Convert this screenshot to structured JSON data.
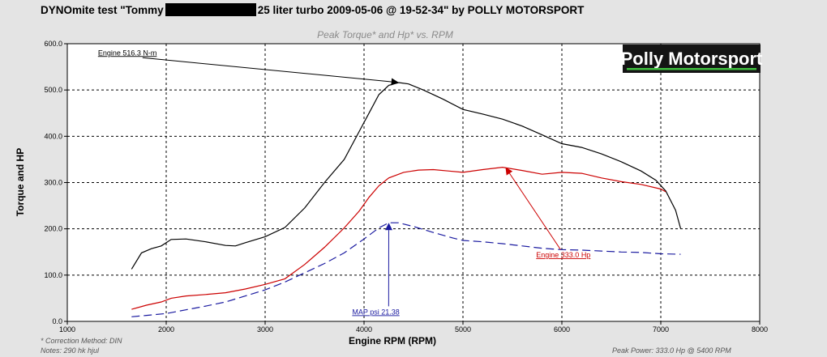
{
  "header": {
    "title_prefix": "DYNOmite test \"Tommy",
    "title_suffix": "25 liter turbo 2009-05-06 @ 19-52-34\" by POLLY MOTORSPORT"
  },
  "logo": {
    "text": "Polly Motorsport",
    "accent": "#3fbf3f"
  },
  "footer": {
    "correction": "* Correction Method: DIN",
    "notes": "Notes: 290 hk hjul",
    "peak_power": "Peak Power: 333.0 Hp @ 5400 RPM"
  },
  "chart_data": {
    "type": "line",
    "title": "Peak Torque* and Hp* vs. RPM",
    "xlabel": "Engine RPM (RPM)",
    "ylabel": "Torque and HP",
    "xlim": [
      1000,
      8000
    ],
    "ylim": [
      0,
      600
    ],
    "xticks": [
      "1000",
      "2000",
      "3000",
      "4000",
      "5000",
      "6000",
      "7000",
      "8000"
    ],
    "yticks": [
      "0.0",
      "100.0",
      "200.0",
      "300.0",
      "400.0",
      "500.0",
      "600.0"
    ],
    "grid": true,
    "series": [
      {
        "name": "Engine N-m",
        "color": "#000000",
        "style": "solid",
        "x": [
          1650,
          1750,
          1850,
          1950,
          2050,
          2200,
          2400,
          2600,
          2700,
          2800,
          3000,
          3200,
          3400,
          3600,
          3800,
          3950,
          4050,
          4150,
          4250,
          4350,
          4450,
          4600,
          4800,
          5000,
          5200,
          5400,
          5600,
          5800,
          6000,
          6200,
          6400,
          6600,
          6800,
          6950,
          7050,
          7150,
          7200
        ],
        "y": [
          113,
          148,
          157,
          163,
          177,
          178,
          172,
          164,
          163,
          170,
          183,
          203,
          245,
          300,
          350,
          410,
          450,
          490,
          510,
          516,
          513,
          500,
          480,
          458,
          448,
          437,
          422,
          403,
          384,
          376,
          362,
          345,
          325,
          305,
          282,
          240,
          201
        ]
      },
      {
        "name": "Engine Hp",
        "color": "#cc0000",
        "style": "solid",
        "x": [
          1650,
          1800,
          1950,
          2050,
          2200,
          2400,
          2600,
          2800,
          3000,
          3200,
          3400,
          3600,
          3800,
          3950,
          4050,
          4150,
          4250,
          4400,
          4550,
          4700,
          4850,
          5000,
          5200,
          5400,
          5600,
          5800,
          6000,
          6200,
          6400,
          6600,
          6800,
          7000,
          7050
        ],
        "y": [
          26,
          35,
          42,
          50,
          55,
          58,
          62,
          70,
          80,
          92,
          123,
          160,
          202,
          238,
          268,
          293,
          310,
          322,
          327,
          328,
          325,
          322,
          328,
          333,
          326,
          318,
          322,
          320,
          310,
          302,
          296,
          286,
          280
        ]
      },
      {
        "name": "MAP psi",
        "color": "#1a1aa0",
        "style": "dashed",
        "x": [
          1650,
          1800,
          2000,
          2200,
          2400,
          2600,
          2800,
          3000,
          3200,
          3400,
          3600,
          3800,
          4000,
          4150,
          4250,
          4350,
          4500,
          4700,
          4900,
          5000,
          5200,
          5400,
          5600,
          5800,
          6000,
          6200,
          6400,
          6600,
          6800,
          7000,
          7200
        ],
        "y": [
          10,
          13,
          17,
          25,
          33,
          42,
          55,
          68,
          85,
          105,
          125,
          148,
          178,
          202,
          213,
          213,
          205,
          192,
          180,
          175,
          172,
          168,
          163,
          158,
          155,
          154,
          152,
          150,
          149,
          146,
          145
        ]
      }
    ],
    "annotations": [
      {
        "label": "Engine 516.3 N-m",
        "series": 0,
        "x": 4350,
        "y": 516.3,
        "color": "#000000",
        "text_x": 1310,
        "text_y": 575
      },
      {
        "label": "Engine 333.0 Hp",
        "series": 1,
        "x": 5430,
        "y": 333,
        "color": "#cc0000",
        "text_x": 5740,
        "text_y": 138
      },
      {
        "label": "MAP psi 21.38",
        "series": 2,
        "x": 4250,
        "y": 213,
        "color": "#1a1aa0",
        "text_x": 3880,
        "text_y": 15
      }
    ]
  }
}
